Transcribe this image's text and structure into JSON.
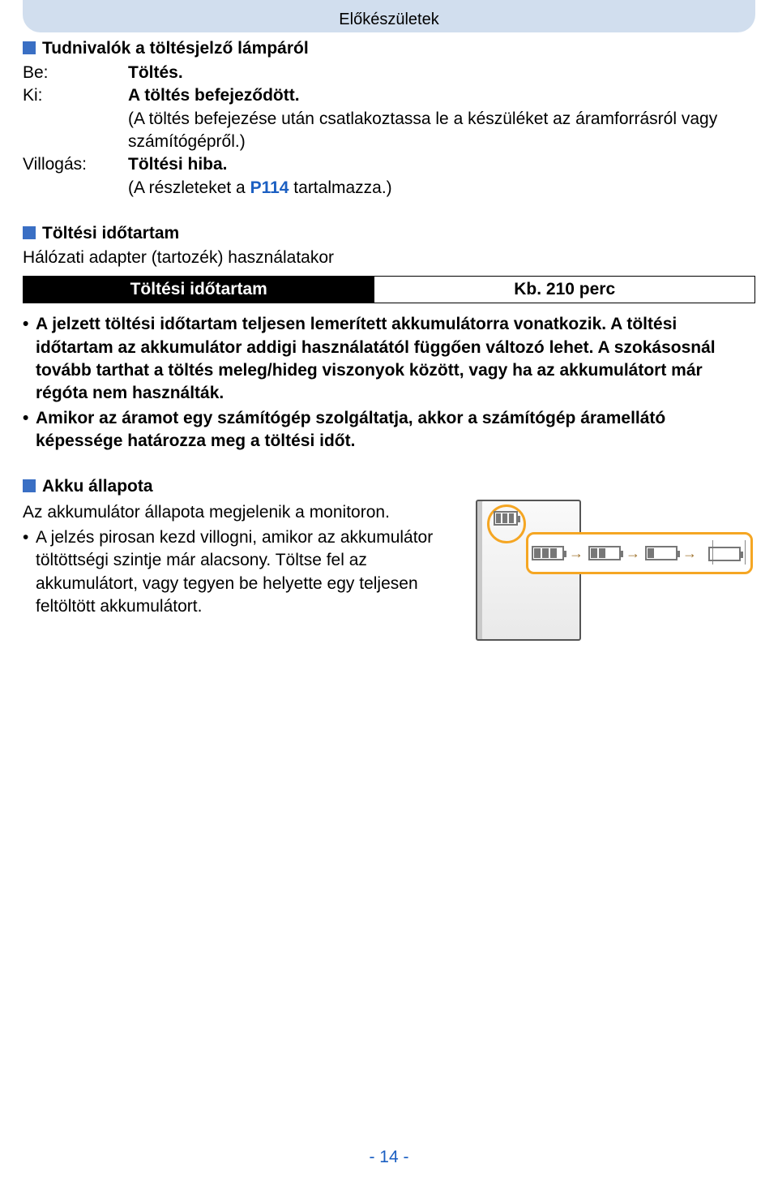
{
  "header": {
    "title": "Előkészületek"
  },
  "section1": {
    "title": "Tudnivalók a töltésjelző lámpáról",
    "rows": {
      "be": {
        "label": "Be:",
        "text": "Töltés."
      },
      "ki": {
        "label": "Ki:",
        "text1": "A töltés befejeződött.",
        "text2": "(A töltés befejezése után csatlakoztassa le a készüléket az áramforrásról vagy számítógépről.)"
      },
      "vil": {
        "label": "Villogás:",
        "text1": "Töltési hiba.",
        "text2a": "(A részleteket a ",
        "link": "P114",
        "text2b": " tartalmazza.)"
      }
    }
  },
  "section2": {
    "title": "Töltési időtartam",
    "subtitle": "Hálózati adapter (tartozék) használatakor",
    "table": {
      "header": "Töltési időtartam",
      "value": "Kb. 210 perc"
    },
    "bullets": [
      "A jelzett töltési időtartam teljesen lemerített akkumulátorra vonatkozik. A töltési időtartam az akkumulátor addigi használatától függően változó lehet. A szokásosnál tovább tarthat a töltés meleg/hideg viszonyok között, vagy ha az akkumulátort már régóta nem használták.",
      "Amikor az áramot egy számítógép szolgáltatja, akkor a számítógép áramellátó képessége határozza meg a töltési időt."
    ]
  },
  "section3": {
    "title": "Akku állapota",
    "line1": "Az akkumulátor állapota megjelenik a monitoron.",
    "bullet": "A jelzés pirosan kezd villogni, amikor az akkumulátor töltöttségi szintje már alacsony. Töltse fel az akkumulátort, vagy tegyen be helyette egy teljesen feltöltött akkumulátort."
  },
  "diagram": {
    "accent_color": "#f5a623",
    "battery_states": [
      3,
      2,
      1,
      0
    ]
  },
  "page_number": "- 14 -"
}
